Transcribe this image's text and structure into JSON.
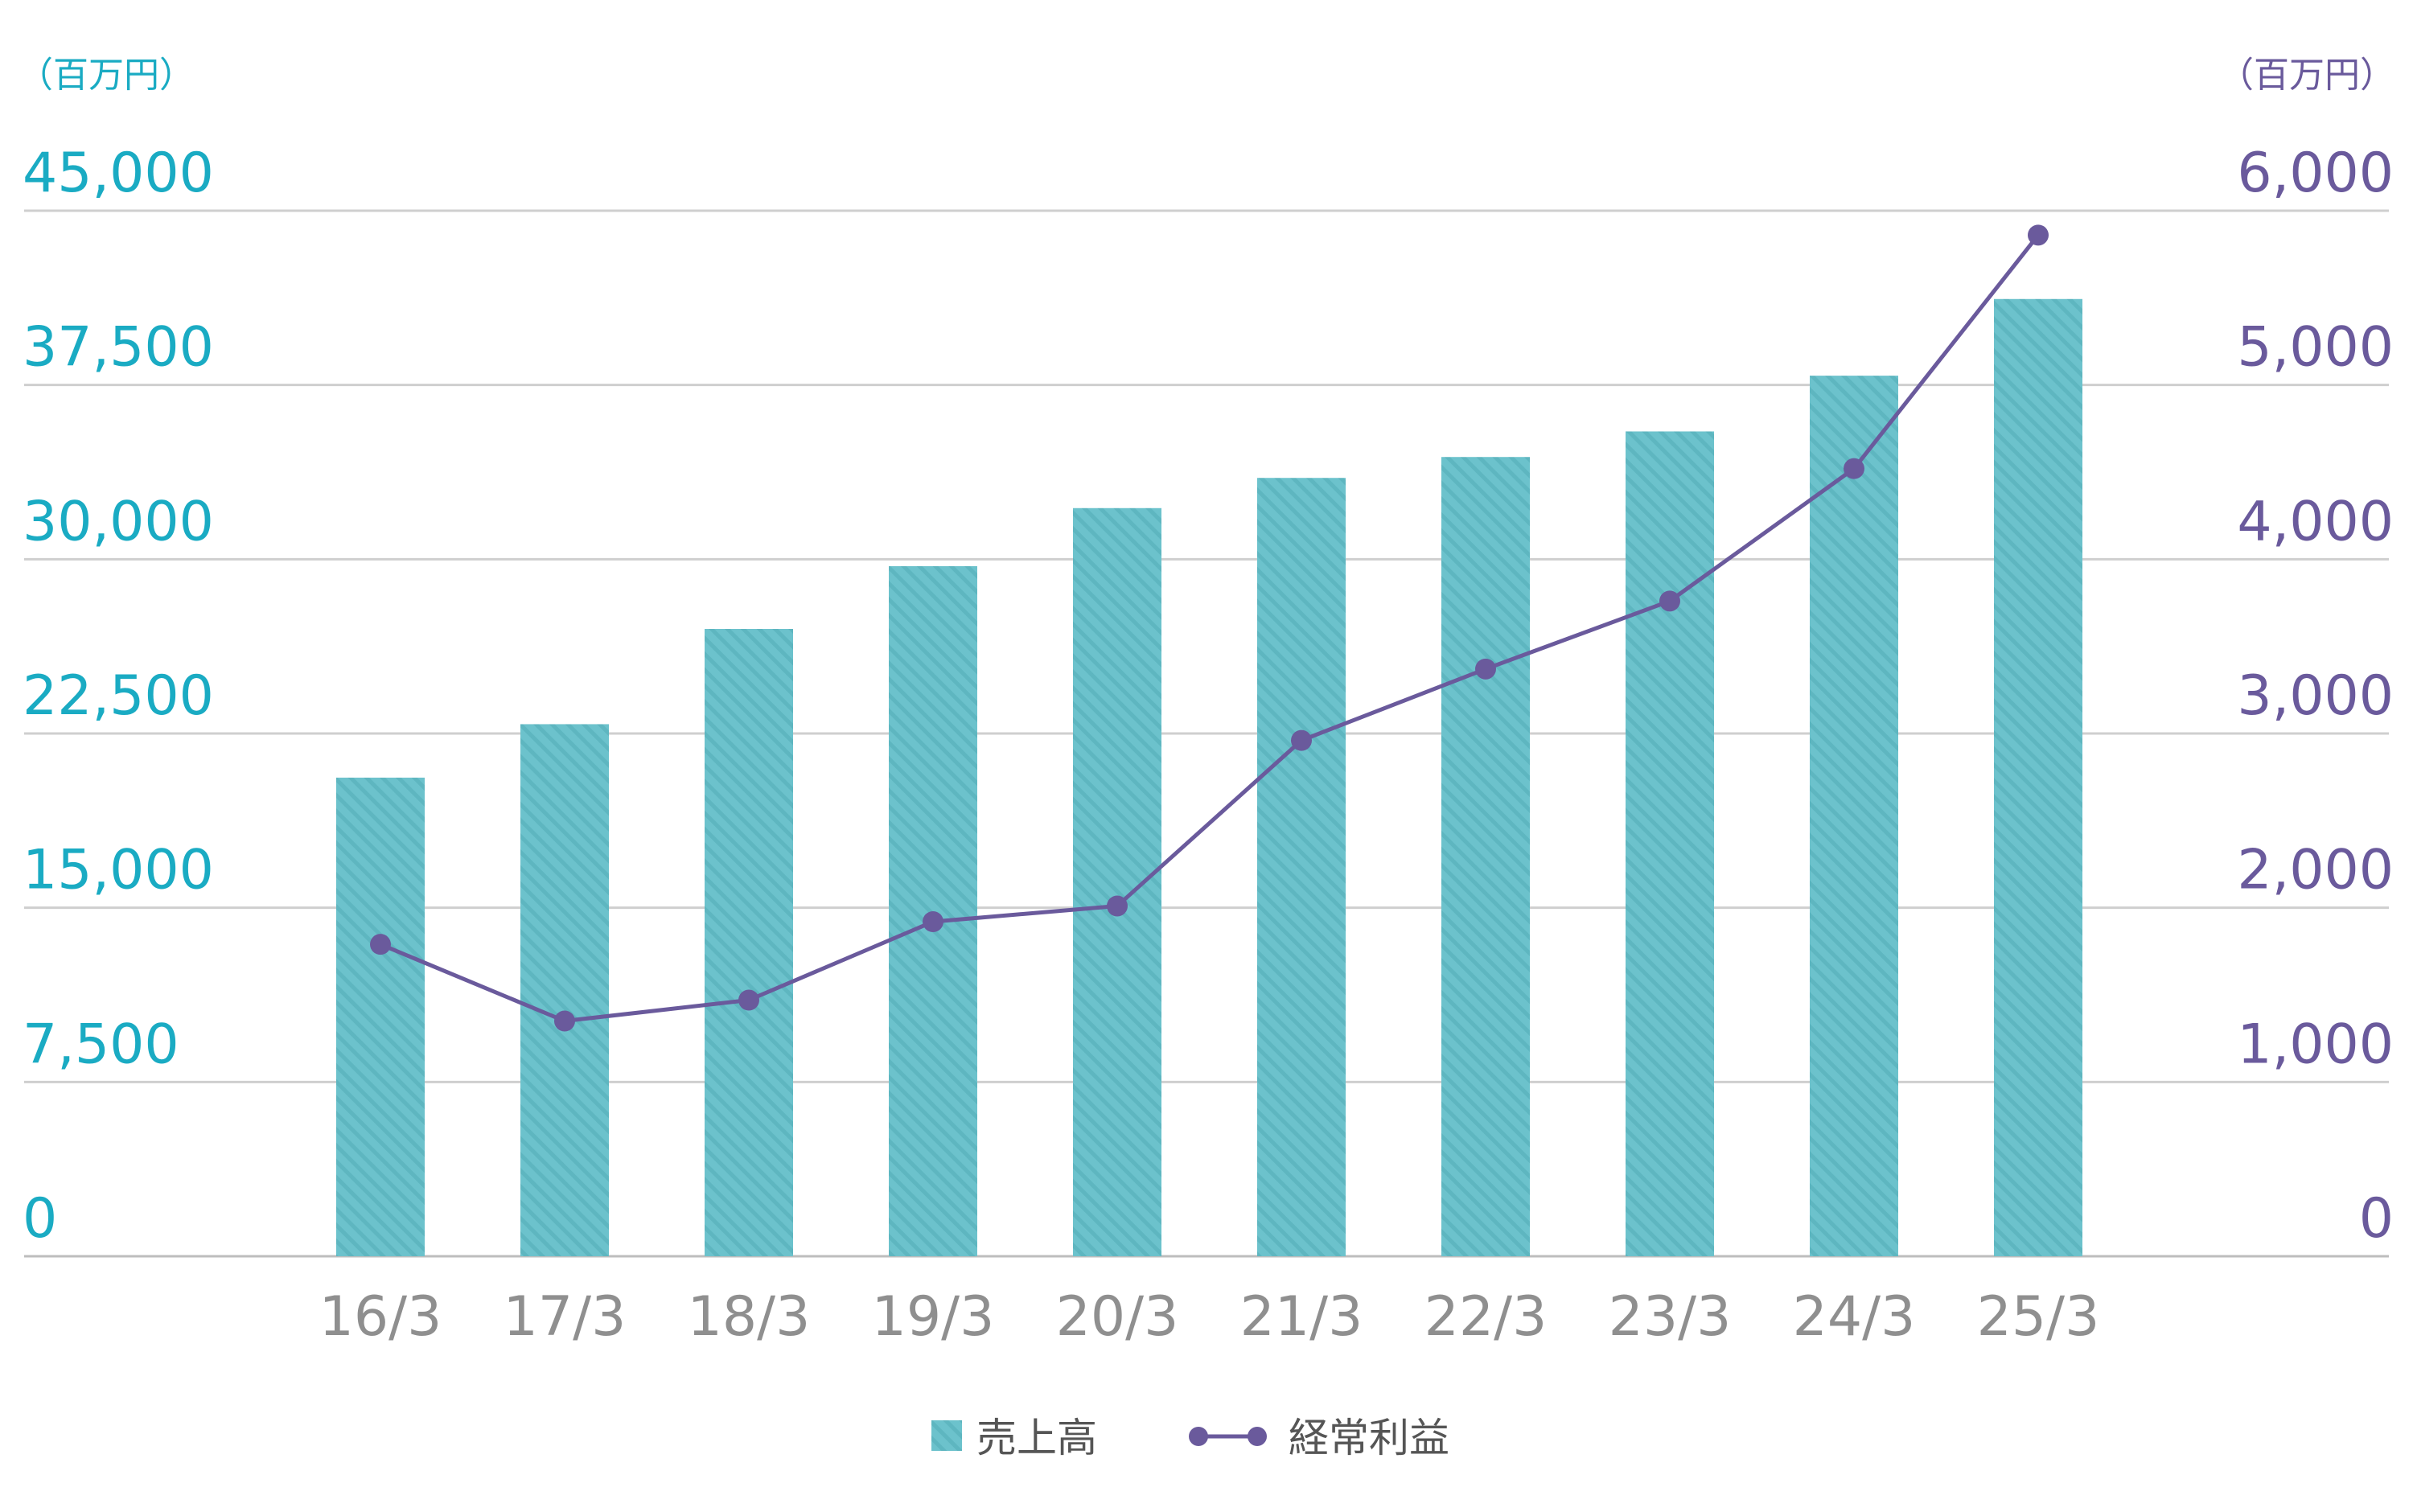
{
  "chart_data": {
    "type": "bar",
    "categories": [
      "16/3",
      "17/3",
      "18/3",
      "19/3",
      "20/3",
      "21/3",
      "22/3",
      "23/3",
      "24/3",
      "25/3"
    ],
    "series": [
      {
        "name": "売上高",
        "type": "bar",
        "axis": "left",
        "values": [
          20600,
          22900,
          27000,
          29700,
          32200,
          33500,
          34400,
          35500,
          37900,
          41200
        ]
      },
      {
        "name": "経常利益",
        "type": "line",
        "axis": "right",
        "values": [
          1790,
          1350,
          1470,
          1920,
          2010,
          2960,
          3370,
          3760,
          4520,
          5860
        ]
      }
    ],
    "left_axis": {
      "unit": "（百万円）",
      "ticks": [
        "0",
        "7,500",
        "15,000",
        "22,500",
        "30,000",
        "37,500",
        "45,000"
      ],
      "ylim": [
        0,
        45000
      ]
    },
    "right_axis": {
      "unit": "（百万円）",
      "ticks": [
        "0",
        "1,000",
        "2,000",
        "3,000",
        "4,000",
        "5,000",
        "6,000"
      ],
      "ylim": [
        0,
        6000
      ]
    },
    "grid": true,
    "legend_position": "bottom-center",
    "colors": {
      "bar": "#6cc2cc",
      "bar_stripe": "#58b3bd",
      "line": "#6a5a9c",
      "left_axis": "#1aabc3",
      "right_axis": "#6a5a9c",
      "grid": "#cfcfcf",
      "xtick": "#8f8f8f"
    }
  }
}
